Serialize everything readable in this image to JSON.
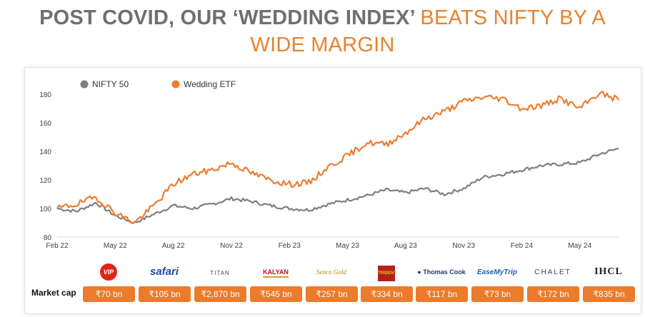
{
  "title": {
    "part1": "POST COVID, OUR ‘WEDDING INDEX’",
    "part2": "BEATS NIFTY BY A",
    "part3": "WIDE MARGIN"
  },
  "colors": {
    "nifty": "#7f7f7f",
    "wedding": "#ed7d31",
    "accent": "#ec7b2b"
  },
  "chart_data": {
    "type": "line",
    "ylim": [
      80,
      185
    ],
    "y_ticks": [
      "180",
      "160",
      "140",
      "120",
      "100",
      "80"
    ],
    "x_ticks": [
      "Feb 22",
      "May 22",
      "Aug 22",
      "Nov 22",
      "Feb 23",
      "May 23",
      "Aug 23",
      "Nov 23",
      "Feb 24",
      "May 24"
    ],
    "legend_position": "top-left",
    "grid": false,
    "series": [
      {
        "name": "NIFTY 50",
        "points": [
          [
            "Feb 22",
            100
          ],
          [
            "Mar 22",
            98
          ],
          [
            "Apr 22",
            104
          ],
          [
            "May 22",
            95
          ],
          [
            "Jun 22",
            90
          ],
          [
            "Jul 22",
            96
          ],
          [
            "Aug 22",
            102
          ],
          [
            "Sep 22",
            100
          ],
          [
            "Oct 22",
            103
          ],
          [
            "Nov 22",
            107
          ],
          [
            "Dec 22",
            105
          ],
          [
            "Jan 23",
            102
          ],
          [
            "Feb 23",
            100
          ],
          [
            "Mar 23",
            99
          ],
          [
            "Apr 23",
            103
          ],
          [
            "May 23",
            106
          ],
          [
            "Jun 23",
            109
          ],
          [
            "Jul 23",
            113
          ],
          [
            "Aug 23",
            111
          ],
          [
            "Sep 23",
            114
          ],
          [
            "Oct 23",
            110
          ],
          [
            "Nov 23",
            114
          ],
          [
            "Dec 23",
            122
          ],
          [
            "Jan 24",
            124
          ],
          [
            "Feb 24",
            127
          ],
          [
            "Mar 24",
            130
          ],
          [
            "Apr 24",
            131
          ],
          [
            "May 24",
            132
          ],
          [
            "Jun 24",
            138
          ],
          [
            "Jul 24",
            142
          ]
        ]
      },
      {
        "name": "Wedding ETF",
        "points": [
          [
            "Feb 22",
            100
          ],
          [
            "Mar 22",
            103
          ],
          [
            "Apr 22",
            108
          ],
          [
            "May 22",
            97
          ],
          [
            "Jun 22",
            90
          ],
          [
            "Jul 22",
            102
          ],
          [
            "Aug 22",
            117
          ],
          [
            "Sep 22",
            124
          ],
          [
            "Oct 22",
            127
          ],
          [
            "Nov 22",
            132
          ],
          [
            "Dec 22",
            125
          ],
          [
            "Jan 23",
            120
          ],
          [
            "Feb 23",
            117
          ],
          [
            "Mar 23",
            118
          ],
          [
            "Apr 23",
            129
          ],
          [
            "May 23",
            137
          ],
          [
            "Jun 23",
            146
          ],
          [
            "Jul 23",
            145
          ],
          [
            "Aug 23",
            153
          ],
          [
            "Sep 23",
            163
          ],
          [
            "Oct 23",
            168
          ],
          [
            "Nov 23",
            175
          ],
          [
            "Dec 23",
            178
          ],
          [
            "Jan 24",
            177
          ],
          [
            "Feb 24",
            170
          ],
          [
            "Mar 24",
            172
          ],
          [
            "Apr 24",
            177
          ],
          [
            "May 24",
            170
          ],
          [
            "Jun 24",
            181
          ],
          [
            "Jul 24",
            176
          ]
        ]
      }
    ]
  },
  "companies": [
    {
      "name": "VIP",
      "color": "#e2231a",
      "style": "circle"
    },
    {
      "name": "safari",
      "color": "#1f4aa3",
      "style": "italic"
    },
    {
      "name": "TITAN",
      "color": "#3e4b64",
      "style": "titan"
    },
    {
      "name": "KALYAN",
      "color": "#b3122b",
      "style": "boxed"
    },
    {
      "name": "Senco Gold",
      "color": "#b8860b",
      "style": "script"
    },
    {
      "name": "TRIDENT",
      "color": "#b11f1f",
      "style": "square"
    },
    {
      "name": "Thomas Cook",
      "color": "#1f3a6e",
      "style": "globe"
    },
    {
      "name": "EaseMyTrip",
      "color": "#1a5fb4",
      "style": "italic-small"
    },
    {
      "name": "CHALET",
      "color": "#24457a",
      "style": "spaced"
    },
    {
      "name": "IHCL",
      "color": "#222222",
      "style": "bold"
    }
  ],
  "market_cap": {
    "label": "Market cap",
    "values": [
      "₹70 bn",
      "₹105 bn",
      "₹2,870 bn",
      "₹545 bn",
      "₹257 bn",
      "₹334 bn",
      "₹117 bn",
      "₹73 bn",
      "₹172 bn",
      "₹835 bn"
    ]
  }
}
